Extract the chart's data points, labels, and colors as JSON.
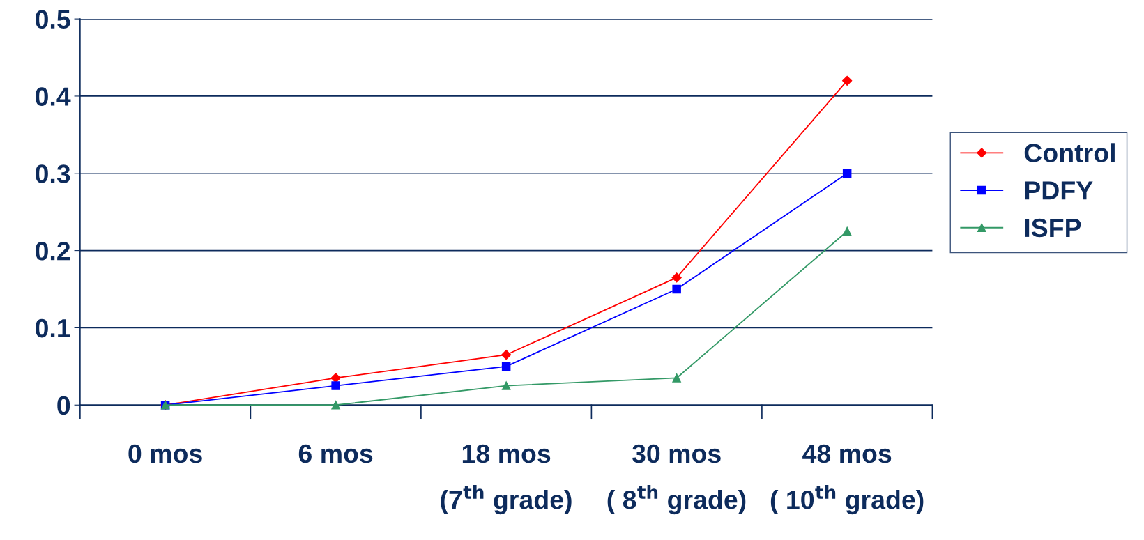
{
  "chart_data": {
    "type": "line",
    "categories": [
      "0 mos",
      "6 mos",
      "18 mos\n(7$^{th}$ grade)",
      "30 mos\n( 8$^{th}$ grade)",
      "48 mos\n( 10$^{th}$ grade)"
    ],
    "series": [
      {
        "name": "Control",
        "color": "#ff0000",
        "marker": "diamond",
        "values": [
          0,
          0.035,
          0.065,
          0.165,
          0.42
        ]
      },
      {
        "name": "PDFY",
        "color": "#0000ff",
        "marker": "square",
        "values": [
          0,
          0.025,
          0.05,
          0.15,
          0.3
        ]
      },
      {
        "name": "ISFP",
        "color": "#339966",
        "marker": "triangle",
        "values": [
          0,
          0,
          0.025,
          0.035,
          0.225
        ]
      }
    ],
    "ylim": [
      0,
      0.5
    ],
    "yticks": [
      0,
      0.1,
      0.2,
      0.3,
      0.4,
      0.5
    ],
    "grid": "y",
    "legend": "right",
    "line_style": "solid"
  }
}
